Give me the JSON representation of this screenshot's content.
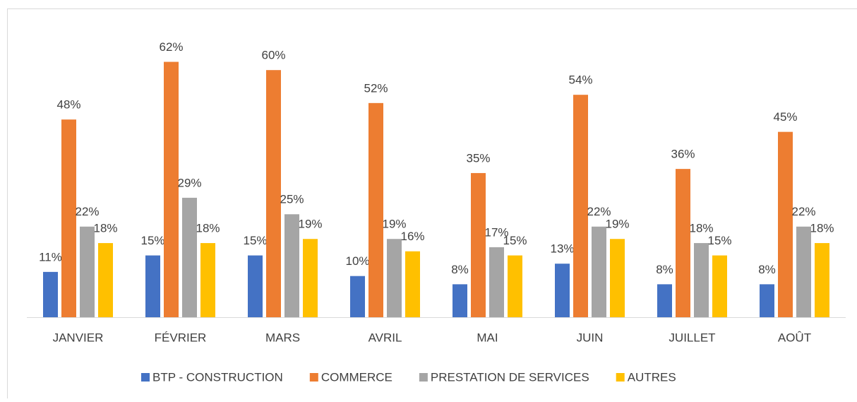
{
  "chart_data": {
    "type": "bar",
    "categories": [
      "JANVIER",
      "FÉVRIER",
      "MARS",
      "AVRIL",
      "MAI",
      "JUIN",
      "JUILLET",
      "AOÛT"
    ],
    "series": [
      {
        "name": "BTP - CONSTRUCTION",
        "color": "#4472c4",
        "values": [
          11,
          15,
          15,
          10,
          8,
          13,
          8,
          8
        ],
        "value_labels": [
          "11%",
          "15%",
          "15%",
          "10%",
          "8%",
          "13%",
          "8%",
          "8%"
        ]
      },
      {
        "name": "COMMERCE",
        "color": "#ed7d31",
        "values": [
          48,
          62,
          60,
          52,
          35,
          54,
          36,
          45
        ],
        "value_labels": [
          "48%",
          "62%",
          "60%",
          "52%",
          "35%",
          "54%",
          "36%",
          "45%"
        ]
      },
      {
        "name": "PRESTATION DE SERVICES",
        "color": "#a5a5a5",
        "values": [
          22,
          29,
          25,
          19,
          17,
          22,
          18,
          22
        ],
        "value_labels": [
          "22%",
          "29%",
          "25%",
          "19%",
          "17%",
          "22%",
          "18%",
          "22%"
        ]
      },
      {
        "name": "AUTRES",
        "color": "#ffc000",
        "values": [
          18,
          18,
          19,
          16,
          15,
          19,
          15,
          18
        ],
        "value_labels": [
          "18%",
          "18%",
          "19%",
          "16%",
          "15%",
          "19%",
          "15%",
          "18%"
        ]
      }
    ],
    "legend": "bottom"
  }
}
